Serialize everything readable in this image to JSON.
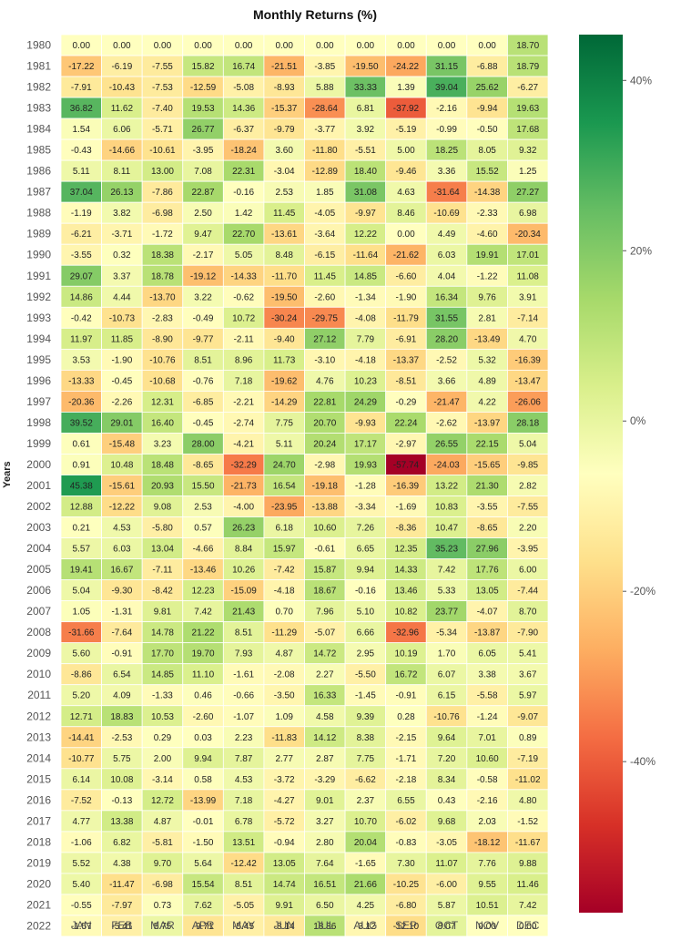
{
  "chart_data": {
    "type": "heatmap",
    "title": "Monthly Returns (%)",
    "xlabel": "",
    "ylabel": "Years",
    "columns": [
      "JAN",
      "FEB",
      "MAR",
      "APR",
      "MAY",
      "JUN",
      "JUL",
      "AUG",
      "SEP",
      "OCT",
      "NOV",
      "DEC"
    ],
    "rows": [
      "1980",
      "1981",
      "1982",
      "1983",
      "1984",
      "1985",
      "1986",
      "1987",
      "1988",
      "1989",
      "1990",
      "1991",
      "1992",
      "1993",
      "1994",
      "1995",
      "1996",
      "1997",
      "1998",
      "1999",
      "2000",
      "2001",
      "2002",
      "2003",
      "2004",
      "2005",
      "2006",
      "2007",
      "2008",
      "2009",
      "2010",
      "2011",
      "2012",
      "2013",
      "2014",
      "2015",
      "2016",
      "2017",
      "2018",
      "2019",
      "2020",
      "2021",
      "2022"
    ],
    "values": [
      [
        0.0,
        0.0,
        0.0,
        0.0,
        0.0,
        0.0,
        0.0,
        0.0,
        0.0,
        0.0,
        0.0,
        18.7
      ],
      [
        -17.22,
        -6.19,
        -7.55,
        15.82,
        16.74,
        -21.51,
        -3.85,
        -19.5,
        -24.22,
        31.15,
        -6.88,
        18.79
      ],
      [
        -7.91,
        -10.43,
        -7.53,
        -12.59,
        -5.08,
        -8.93,
        5.88,
        33.33,
        1.39,
        39.04,
        25.62,
        -6.27
      ],
      [
        36.82,
        11.62,
        -7.4,
        19.53,
        14.36,
        -15.37,
        -28.64,
        6.81,
        -37.92,
        -2.16,
        -9.94,
        19.63
      ],
      [
        1.54,
        6.06,
        -5.71,
        26.77,
        -6.37,
        -9.79,
        -3.77,
        3.92,
        -5.19,
        -0.99,
        -0.5,
        17.68
      ],
      [
        -0.43,
        -14.66,
        -10.61,
        -3.95,
        -18.24,
        3.6,
        -11.8,
        -5.51,
        5.0,
        18.25,
        8.05,
        9.32
      ],
      [
        5.11,
        8.11,
        13.0,
        7.08,
        22.31,
        -3.04,
        -12.89,
        18.4,
        -9.46,
        3.36,
        15.52,
        1.25
      ],
      [
        37.04,
        26.13,
        -7.86,
        22.87,
        -0.16,
        2.53,
        1.85,
        31.08,
        4.63,
        -31.64,
        -14.38,
        27.27
      ],
      [
        -1.19,
        3.82,
        -6.98,
        2.5,
        1.42,
        11.45,
        -4.05,
        -9.97,
        8.46,
        -10.69,
        -2.33,
        6.98
      ],
      [
        -6.21,
        -3.71,
        -1.72,
        9.47,
        22.7,
        -13.61,
        -3.64,
        12.22,
        0.0,
        4.49,
        -4.6,
        -20.34
      ],
      [
        -3.55,
        0.32,
        18.38,
        -2.17,
        5.05,
        8.48,
        -6.15,
        -11.64,
        -21.62,
        6.03,
        19.91,
        17.01
      ],
      [
        29.07,
        3.37,
        18.78,
        -19.12,
        -14.33,
        -11.7,
        11.45,
        14.85,
        -6.6,
        4.04,
        -1.22,
        11.08
      ],
      [
        14.86,
        4.44,
        -13.7,
        3.22,
        -0.62,
        -19.5,
        -2.6,
        -1.34,
        -1.9,
        16.34,
        9.76,
        3.91
      ],
      [
        -0.42,
        -10.73,
        -2.83,
        -0.49,
        10.72,
        -30.24,
        -29.75,
        -4.08,
        -11.79,
        31.55,
        2.81,
        -7.14
      ],
      [
        11.97,
        11.85,
        -8.9,
        -9.77,
        -2.11,
        -9.4,
        27.12,
        7.79,
        -6.91,
        28.2,
        -13.49,
        4.7
      ],
      [
        3.53,
        -1.9,
        -10.76,
        8.51,
        8.96,
        11.73,
        -3.1,
        -4.18,
        -13.37,
        -2.52,
        5.32,
        -16.39
      ],
      [
        -13.33,
        -0.45,
        -10.68,
        -0.76,
        7.18,
        -19.62,
        4.76,
        10.23,
        -8.51,
        3.66,
        4.89,
        -13.47
      ],
      [
        -20.36,
        -2.26,
        12.31,
        -6.85,
        -2.21,
        -14.29,
        22.81,
        24.29,
        -0.29,
        -21.47,
        4.22,
        -26.06
      ],
      [
        39.52,
        29.01,
        16.4,
        -0.45,
        -2.74,
        7.75,
        20.7,
        -9.93,
        22.24,
        -2.62,
        -13.97,
        28.18
      ],
      [
        0.61,
        -15.48,
        3.23,
        28.0,
        -4.21,
        5.11,
        20.24,
        17.17,
        -2.97,
        26.55,
        22.15,
        5.04
      ],
      [
        0.91,
        10.48,
        18.48,
        -8.65,
        -32.29,
        24.7,
        -2.98,
        19.93,
        -57.74,
        -24.03,
        -15.65,
        -9.85
      ],
      [
        45.38,
        -15.61,
        20.93,
        15.5,
        -21.73,
        16.54,
        -19.18,
        -1.28,
        -16.39,
        13.22,
        21.3,
        2.82
      ],
      [
        12.88,
        -12.22,
        9.08,
        2.53,
        -4.0,
        -23.95,
        -13.88,
        -3.34,
        -1.69,
        10.83,
        -3.55,
        -7.55
      ],
      [
        0.21,
        4.53,
        -5.8,
        0.57,
        26.23,
        6.18,
        10.6,
        7.26,
        -8.36,
        10.47,
        -8.65,
        2.2
      ],
      [
        5.57,
        6.03,
        13.04,
        -4.66,
        8.84,
        15.97,
        -0.61,
        6.65,
        12.35,
        35.23,
        27.96,
        -3.95
      ],
      [
        19.41,
        16.67,
        -7.11,
        -13.46,
        10.26,
        -7.42,
        15.87,
        9.94,
        14.33,
        7.42,
        17.76,
        6.0
      ],
      [
        5.04,
        -9.3,
        -8.42,
        12.23,
        -15.09,
        -4.18,
        18.67,
        -0.16,
        13.46,
        5.33,
        13.05,
        -7.44
      ],
      [
        1.05,
        -1.31,
        9.81,
        7.42,
        21.43,
        0.7,
        7.96,
        5.1,
        10.82,
        23.77,
        -4.07,
        8.7
      ],
      [
        -31.66,
        -7.64,
        14.78,
        21.22,
        8.51,
        -11.29,
        -5.07,
        6.66,
        -32.96,
        -5.34,
        -13.87,
        -7.9
      ],
      [
        5.6,
        -0.91,
        17.7,
        19.7,
        7.93,
        4.87,
        14.72,
        2.95,
        10.19,
        1.7,
        6.05,
        5.41
      ],
      [
        -8.86,
        6.54,
        14.85,
        11.1,
        -1.61,
        -2.08,
        2.27,
        -5.5,
        16.72,
        6.07,
        3.38,
        3.67
      ],
      [
        5.2,
        4.09,
        -1.33,
        0.46,
        -0.66,
        -3.5,
        16.33,
        -1.45,
        -0.91,
        6.15,
        -5.58,
        5.97
      ],
      [
        12.71,
        18.83,
        10.53,
        -2.6,
        -1.07,
        1.09,
        4.58,
        9.39,
        0.28,
        -10.76,
        -1.24,
        -9.07
      ],
      [
        -14.41,
        -2.53,
        0.29,
        0.03,
        2.23,
        -11.83,
        14.12,
        8.38,
        -2.15,
        9.64,
        7.01,
        0.89
      ],
      [
        -10.77,
        5.75,
        2.0,
        9.94,
        7.87,
        2.77,
        2.87,
        7.75,
        -1.71,
        7.2,
        10.6,
        -7.19
      ],
      [
        6.14,
        10.08,
        -3.14,
        0.58,
        4.53,
        -3.72,
        -3.29,
        -6.62,
        -2.18,
        8.34,
        -0.58,
        -11.02
      ],
      [
        -7.52,
        -0.13,
        12.72,
        -13.99,
        7.18,
        -4.27,
        9.01,
        2.37,
        6.55,
        0.43,
        -2.16,
        4.8
      ],
      [
        4.77,
        13.38,
        4.87,
        -0.01,
        6.78,
        -5.72,
        3.27,
        10.7,
        -6.02,
        9.68,
        2.03,
        -1.52
      ],
      [
        -1.06,
        6.82,
        -5.81,
        -1.5,
        13.51,
        -0.94,
        2.8,
        20.04,
        -0.83,
        -3.05,
        -18.12,
        -11.67
      ],
      [
        5.52,
        4.38,
        9.7,
        5.64,
        -12.42,
        13.05,
        7.64,
        -1.65,
        7.3,
        11.07,
        7.76,
        9.88
      ],
      [
        5.4,
        -11.47,
        -6.98,
        15.54,
        8.51,
        14.74,
        16.51,
        21.66,
        -10.25,
        -6.0,
        9.55,
        11.46
      ],
      [
        -0.55,
        -7.97,
        0.73,
        7.62,
        -5.05,
        9.91,
        6.5,
        4.25,
        -6.8,
        5.87,
        10.51,
        7.42
      ],
      [
        -1.57,
        -5.41,
        5.75,
        -9.71,
        -5.45,
        -8.14,
        18.86,
        -3.12,
        -12.1,
        8.07,
        0.0,
        0.0
      ]
    ],
    "value_format": "0.00",
    "colormap": "RdYlGn",
    "vmin": -57.74,
    "vmax": 45.38,
    "center": 0,
    "colorbar": {
      "ticks": [
        40,
        20,
        0,
        -20,
        -40
      ],
      "tick_labels": [
        "40%",
        "20%",
        "0%",
        "-20%",
        "-40%"
      ]
    },
    "grid": false,
    "legend": "colorbar-right"
  }
}
